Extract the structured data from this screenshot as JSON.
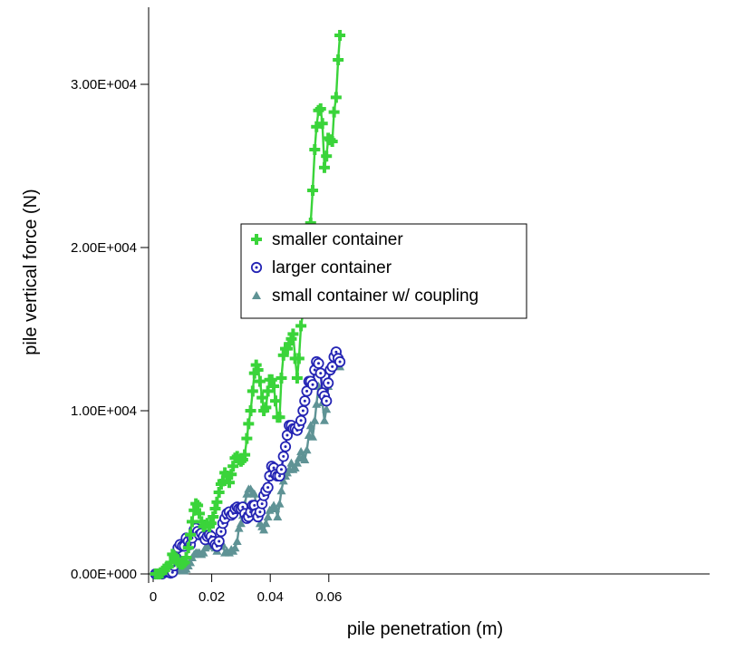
{
  "chart_data": {
    "type": "line",
    "xlabel": "pile penetration (m)",
    "ylabel": "pile vertical force (N)",
    "xlim": [
      0,
      0.065
    ],
    "ylim": [
      0,
      35000
    ],
    "x_ticks": [
      0,
      0.02,
      0.04,
      0.06
    ],
    "x_tick_labels": [
      "0",
      "0.02",
      "0.04",
      "0.06"
    ],
    "y_ticks": [
      0,
      10000,
      20000,
      30000
    ],
    "y_tick_labels": [
      "0.00E+000",
      "1.00E+004",
      "2.00E+004",
      "3.00E+004"
    ],
    "grid": false,
    "legend_position": "center-left",
    "series": [
      {
        "name": "smaller container",
        "color": "#3ad43a",
        "marker": "plus",
        "points": [
          [
            0.0008,
            0
          ],
          [
            0.0015,
            0
          ],
          [
            0.0022,
            0
          ],
          [
            0.003,
            50
          ],
          [
            0.0038,
            300
          ],
          [
            0.0045,
            400
          ],
          [
            0.0052,
            450
          ],
          [
            0.006,
            700
          ],
          [
            0.0066,
            1200
          ],
          [
            0.0072,
            1100
          ],
          [
            0.0078,
            900
          ],
          [
            0.0085,
            700
          ],
          [
            0.0092,
            600
          ],
          [
            0.01,
            600
          ],
          [
            0.0107,
            700
          ],
          [
            0.0113,
            1000
          ],
          [
            0.012,
            1600
          ],
          [
            0.0127,
            2400
          ],
          [
            0.0133,
            3200
          ],
          [
            0.014,
            3900
          ],
          [
            0.0146,
            4300
          ],
          [
            0.0152,
            4200
          ],
          [
            0.0158,
            3700
          ],
          [
            0.0165,
            3200
          ],
          [
            0.0172,
            2900
          ],
          [
            0.0178,
            3000
          ],
          [
            0.0185,
            3100
          ],
          [
            0.0192,
            2900
          ],
          [
            0.0198,
            3100
          ],
          [
            0.0205,
            3500
          ],
          [
            0.0212,
            4000
          ],
          [
            0.0218,
            4400
          ],
          [
            0.0225,
            5000
          ],
          [
            0.0232,
            5500
          ],
          [
            0.0238,
            5700
          ],
          [
            0.0245,
            6200
          ],
          [
            0.0252,
            6000
          ],
          [
            0.026,
            5600
          ],
          [
            0.0267,
            6100
          ],
          [
            0.0273,
            6600
          ],
          [
            0.028,
            7100
          ],
          [
            0.0287,
            7200
          ],
          [
            0.0293,
            7000
          ],
          [
            0.03,
            6900
          ],
          [
            0.0306,
            7000
          ],
          [
            0.0313,
            7300
          ],
          [
            0.032,
            8300
          ],
          [
            0.0326,
            9200
          ],
          [
            0.0333,
            10000
          ],
          [
            0.034,
            11200
          ],
          [
            0.0346,
            12300
          ],
          [
            0.0352,
            12800
          ],
          [
            0.0358,
            12500
          ],
          [
            0.0365,
            11800
          ],
          [
            0.0372,
            10800
          ],
          [
            0.0378,
            10000
          ],
          [
            0.0385,
            10200
          ],
          [
            0.0392,
            11200
          ],
          [
            0.0398,
            11900
          ],
          [
            0.0405,
            11900
          ],
          [
            0.0412,
            11500
          ],
          [
            0.0418,
            10600
          ],
          [
            0.0425,
            9600
          ],
          [
            0.0432,
            9600
          ],
          [
            0.0438,
            12000
          ],
          [
            0.0445,
            13400
          ],
          [
            0.0452,
            13800
          ],
          [
            0.0458,
            13800
          ],
          [
            0.0465,
            14100
          ],
          [
            0.0472,
            14400
          ],
          [
            0.0478,
            14700
          ],
          [
            0.0485,
            13200
          ],
          [
            0.0492,
            12000
          ],
          [
            0.0498,
            13200
          ],
          [
            0.0505,
            15200
          ],
          [
            0.0512,
            16000
          ],
          [
            0.0518,
            16400
          ],
          [
            0.0525,
            17200
          ],
          [
            0.0532,
            20000
          ],
          [
            0.0538,
            21500
          ],
          [
            0.0545,
            23500
          ],
          [
            0.0552,
            26000
          ],
          [
            0.0558,
            27400
          ],
          [
            0.0565,
            28400
          ],
          [
            0.0572,
            28500
          ],
          [
            0.0578,
            27600
          ],
          [
            0.0585,
            24900
          ],
          [
            0.0592,
            25600
          ],
          [
            0.0598,
            26700
          ],
          [
            0.0605,
            26600
          ],
          [
            0.0612,
            26500
          ],
          [
            0.0618,
            28300
          ],
          [
            0.0625,
            29200
          ],
          [
            0.0632,
            31500
          ],
          [
            0.0638,
            33000
          ]
        ]
      },
      {
        "name": "larger container",
        "color": "#2424b4",
        "marker": "circle-dot",
        "points": [
          [
            0.0008,
            0
          ],
          [
            0.0015,
            0
          ],
          [
            0.0022,
            0
          ],
          [
            0.003,
            0
          ],
          [
            0.0038,
            100
          ],
          [
            0.0045,
            150
          ],
          [
            0.0052,
            100
          ],
          [
            0.006,
            50
          ],
          [
            0.0066,
            100
          ],
          [
            0.0072,
            500
          ],
          [
            0.0078,
            1000
          ],
          [
            0.0085,
            1600
          ],
          [
            0.0092,
            1800
          ],
          [
            0.01,
            1700
          ],
          [
            0.0107,
            1700
          ],
          [
            0.0113,
            2200
          ],
          [
            0.012,
            2000
          ],
          [
            0.0127,
            1800
          ],
          [
            0.0133,
            2200
          ],
          [
            0.014,
            2700
          ],
          [
            0.0146,
            2800
          ],
          [
            0.0152,
            2600
          ],
          [
            0.0158,
            2400
          ],
          [
            0.0165,
            2500
          ],
          [
            0.0172,
            2300
          ],
          [
            0.0178,
            2100
          ],
          [
            0.0185,
            2300
          ],
          [
            0.0192,
            2400
          ],
          [
            0.0198,
            2300
          ],
          [
            0.0205,
            2000
          ],
          [
            0.0212,
            1800
          ],
          [
            0.0218,
            1700
          ],
          [
            0.0225,
            2000
          ],
          [
            0.0232,
            2600
          ],
          [
            0.0238,
            3100
          ],
          [
            0.0245,
            3400
          ],
          [
            0.0252,
            3700
          ],
          [
            0.026,
            3800
          ],
          [
            0.0267,
            3600
          ],
          [
            0.0273,
            3700
          ],
          [
            0.028,
            4000
          ],
          [
            0.0287,
            4100
          ],
          [
            0.0293,
            4000
          ],
          [
            0.03,
            4000
          ],
          [
            0.0306,
            4100
          ],
          [
            0.0313,
            3700
          ],
          [
            0.032,
            3400
          ],
          [
            0.0326,
            3500
          ],
          [
            0.0333,
            3800
          ],
          [
            0.034,
            4200
          ],
          [
            0.0346,
            4200
          ],
          [
            0.0352,
            3700
          ],
          [
            0.0358,
            3500
          ],
          [
            0.0365,
            3800
          ],
          [
            0.0372,
            4300
          ],
          [
            0.0378,
            4800
          ],
          [
            0.0385,
            5100
          ],
          [
            0.0392,
            5300
          ],
          [
            0.0398,
            6000
          ],
          [
            0.0405,
            6600
          ],
          [
            0.0412,
            6500
          ],
          [
            0.0418,
            6100
          ],
          [
            0.0425,
            6000
          ],
          [
            0.0432,
            6000
          ],
          [
            0.0438,
            6400
          ],
          [
            0.0445,
            7200
          ],
          [
            0.0452,
            7800
          ],
          [
            0.0458,
            8500
          ],
          [
            0.0465,
            9100
          ],
          [
            0.0472,
            9100
          ],
          [
            0.0478,
            8900
          ],
          [
            0.0485,
            8900
          ],
          [
            0.0492,
            8800
          ],
          [
            0.0498,
            9100
          ],
          [
            0.0505,
            9400
          ],
          [
            0.0512,
            10000
          ],
          [
            0.0518,
            10600
          ],
          [
            0.0525,
            11200
          ],
          [
            0.0532,
            11800
          ],
          [
            0.0538,
            11800
          ],
          [
            0.0545,
            11600
          ],
          [
            0.0552,
            12500
          ],
          [
            0.0558,
            13000
          ],
          [
            0.0565,
            12900
          ],
          [
            0.0572,
            12300
          ],
          [
            0.0578,
            11100
          ],
          [
            0.0585,
            10900
          ],
          [
            0.0592,
            10600
          ],
          [
            0.0598,
            11700
          ],
          [
            0.0605,
            12500
          ],
          [
            0.0612,
            12700
          ],
          [
            0.0618,
            13300
          ],
          [
            0.0625,
            13600
          ],
          [
            0.0632,
            13200
          ],
          [
            0.0638,
            13000
          ]
        ]
      },
      {
        "name": "small container w/ coupling",
        "color": "#5f9395",
        "marker": "triangle",
        "points": [
          [
            0.0008,
            0
          ],
          [
            0.0015,
            0
          ],
          [
            0.0022,
            0
          ],
          [
            0.003,
            0
          ],
          [
            0.0038,
            0
          ],
          [
            0.0045,
            0
          ],
          [
            0.0052,
            0
          ],
          [
            0.006,
            50
          ],
          [
            0.0066,
            100
          ],
          [
            0.0072,
            200
          ],
          [
            0.0078,
            300
          ],
          [
            0.0085,
            300
          ],
          [
            0.0092,
            250
          ],
          [
            0.01,
            200
          ],
          [
            0.0107,
            200
          ],
          [
            0.0113,
            300
          ],
          [
            0.012,
            500
          ],
          [
            0.0127,
            700
          ],
          [
            0.0133,
            1000
          ],
          [
            0.014,
            1200
          ],
          [
            0.0146,
            1300
          ],
          [
            0.0152,
            1300
          ],
          [
            0.0158,
            1300
          ],
          [
            0.0165,
            1200
          ],
          [
            0.0172,
            1300
          ],
          [
            0.0178,
            1600
          ],
          [
            0.0185,
            1700
          ],
          [
            0.0192,
            1700
          ],
          [
            0.0198,
            1700
          ],
          [
            0.0205,
            1800
          ],
          [
            0.0212,
            1600
          ],
          [
            0.0218,
            1400
          ],
          [
            0.0225,
            1700
          ],
          [
            0.0232,
            2000
          ],
          [
            0.0238,
            1800
          ],
          [
            0.0245,
            1300
          ],
          [
            0.0252,
            1400
          ],
          [
            0.026,
            1300
          ],
          [
            0.0267,
            1500
          ],
          [
            0.0273,
            1400
          ],
          [
            0.028,
            1600
          ],
          [
            0.0287,
            2000
          ],
          [
            0.0293,
            2800
          ],
          [
            0.03,
            3100
          ],
          [
            0.0306,
            3600
          ],
          [
            0.0313,
            4300
          ],
          [
            0.032,
            4900
          ],
          [
            0.0326,
            5200
          ],
          [
            0.0333,
            5200
          ],
          [
            0.034,
            5000
          ],
          [
            0.0346,
            4900
          ],
          [
            0.0352,
            4200
          ],
          [
            0.0358,
            3700
          ],
          [
            0.0365,
            3100
          ],
          [
            0.0372,
            2900
          ],
          [
            0.0378,
            2700
          ],
          [
            0.0385,
            3100
          ],
          [
            0.0392,
            3500
          ],
          [
            0.0398,
            3900
          ],
          [
            0.0405,
            4000
          ],
          [
            0.0412,
            4200
          ],
          [
            0.0418,
            4000
          ],
          [
            0.0425,
            3500
          ],
          [
            0.0432,
            4300
          ],
          [
            0.0438,
            5100
          ],
          [
            0.0445,
            5700
          ],
          [
            0.0452,
            6000
          ],
          [
            0.0458,
            6200
          ],
          [
            0.0465,
            6400
          ],
          [
            0.0472,
            6800
          ],
          [
            0.0478,
            6400
          ],
          [
            0.0485,
            6500
          ],
          [
            0.0492,
            6800
          ],
          [
            0.0498,
            7100
          ],
          [
            0.0505,
            7500
          ],
          [
            0.0512,
            7200
          ],
          [
            0.0518,
            7000
          ],
          [
            0.0525,
            7600
          ],
          [
            0.0532,
            8500
          ],
          [
            0.0538,
            9100
          ],
          [
            0.0545,
            8400
          ],
          [
            0.0552,
            9400
          ],
          [
            0.0558,
            10400
          ],
          [
            0.0565,
            11500
          ],
          [
            0.0572,
            11000
          ],
          [
            0.0578,
            10500
          ],
          [
            0.0585,
            9400
          ],
          [
            0.0592,
            10100
          ],
          [
            0.0598,
            11500
          ],
          [
            0.0605,
            12600
          ],
          [
            0.0612,
            12800
          ],
          [
            0.0618,
            13100
          ],
          [
            0.0625,
            13400
          ],
          [
            0.0632,
            13000
          ],
          [
            0.0638,
            12700
          ]
        ]
      }
    ]
  }
}
